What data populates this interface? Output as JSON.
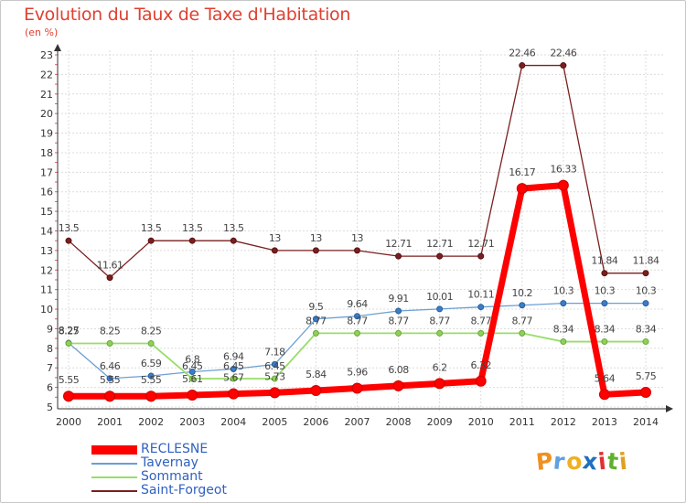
{
  "chart_data": {
    "type": "line",
    "title": "Evolution du Taux de Taxe d'Habitation",
    "ylabel": "(en %)",
    "xlabel": "",
    "categories": [
      "2000",
      "2001",
      "2002",
      "2003",
      "2004",
      "2005",
      "2006",
      "2007",
      "2008",
      "2009",
      "2010",
      "2011",
      "2012",
      "2013",
      "2014"
    ],
    "ylim": [
      5,
      23
    ],
    "yticks": [
      5,
      6,
      7,
      8,
      9,
      10,
      11,
      12,
      13,
      14,
      15,
      16,
      17,
      18,
      19,
      20,
      21,
      22,
      23
    ],
    "grid": true,
    "legend_position": "bottom-left",
    "series": [
      {
        "name": "Saint-Forgeot",
        "color": "#7a1f1f",
        "values": [
          13.5,
          11.61,
          13.5,
          13.5,
          13.5,
          13,
          13,
          13,
          12.71,
          12.71,
          12.71,
          22.46,
          22.46,
          11.84,
          11.84
        ],
        "labels": [
          "13.5",
          "11.61",
          "13.5",
          "13.5",
          "13.5",
          "13",
          "13",
          "13",
          "12.71",
          "12.71",
          "12.71",
          "22.46",
          "22.46",
          "11.84",
          "11.84"
        ]
      },
      {
        "name": "Tavernay",
        "color": "#6a9fd4",
        "values": [
          8.27,
          6.46,
          6.59,
          6.8,
          6.94,
          7.18,
          9.5,
          9.64,
          9.91,
          10.01,
          10.11,
          10.2,
          10.3,
          10.3,
          10.3
        ],
        "labels": [
          "8.27",
          "6.46",
          "6.59",
          "6.8",
          "6.94",
          "7.18",
          "9.5",
          "9.64",
          "9.91",
          "10.01",
          "10.11",
          "10.2",
          "10.3",
          "10.3",
          "10.3"
        ]
      },
      {
        "name": "Sommant",
        "color": "#98dd6a",
        "values": [
          8.25,
          8.25,
          8.25,
          6.45,
          6.45,
          6.45,
          8.77,
          8.77,
          8.77,
          8.77,
          8.77,
          8.77,
          8.34,
          8.34,
          8.34
        ],
        "labels": [
          "8.25",
          "8.25",
          "8.25",
          "6.45",
          "6.45",
          "6.45",
          "8.77",
          "8.77",
          "8.77",
          "8.77",
          "8.77",
          "8.77",
          "8.34",
          "8.34",
          "8.34"
        ]
      },
      {
        "name": "RECLESNE",
        "color": "#ff0000",
        "values": [
          5.55,
          5.55,
          5.55,
          5.61,
          5.67,
          5.73,
          5.84,
          5.96,
          6.08,
          6.2,
          6.32,
          16.17,
          16.33,
          5.64,
          5.75
        ],
        "labels": [
          "5.55",
          "5.55",
          "5.55",
          "5.61",
          "5.67",
          "5.73",
          "5.84",
          "5.96",
          "6.08",
          "6.2",
          "6.32",
          "16.17",
          "16.33",
          "5.64",
          "5.75"
        ]
      }
    ]
  },
  "legend": {
    "items": [
      {
        "name": "RECLESNE",
        "color": "#ff0000"
      },
      {
        "name": "Tavernay",
        "color": "#6a9fd4"
      },
      {
        "name": "Sommant",
        "color": "#98dd6a"
      },
      {
        "name": "Saint-Forgeot",
        "color": "#7a1f1f"
      }
    ]
  },
  "logo": {
    "letters": [
      "P",
      "r",
      "o",
      "x",
      "i",
      "t",
      "i"
    ],
    "colors": [
      "#f09020",
      "#60a0e0",
      "#f0b020",
      "#2070c0",
      "#e03030",
      "#60b030",
      "#e0a020"
    ]
  }
}
